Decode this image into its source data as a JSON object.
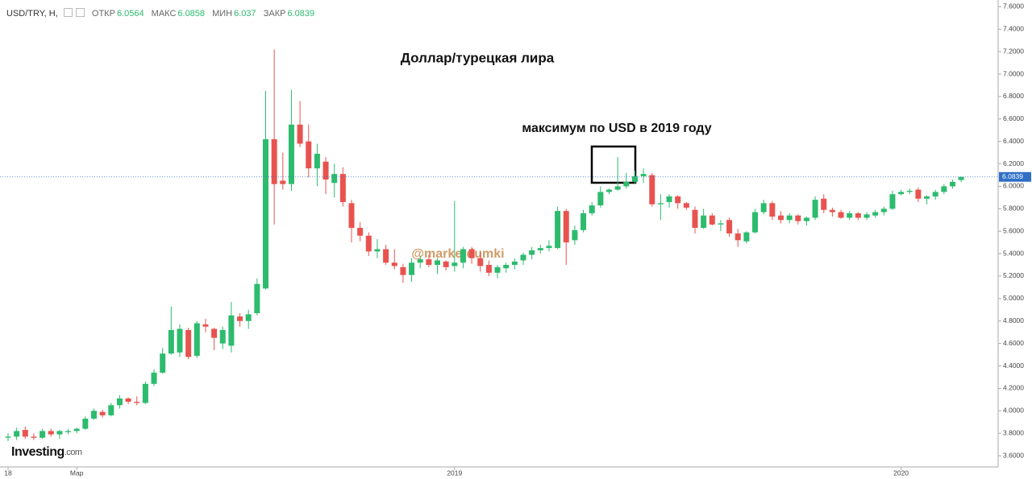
{
  "chart_data": {
    "type": "candlestick",
    "symbol": "USD/TRY, Н,",
    "ohlc_labels": [
      "ОТКР",
      "МАКС",
      "МИН",
      "ЗАКР"
    ],
    "title": "Доллар/турецкая лира",
    "annotation": "максимум по USD в 2019 году",
    "watermark": "@marketdumki",
    "logo": [
      "Investing",
      ".com"
    ],
    "up_color": "#2dbb6e",
    "down_color": "#e8534f",
    "last_price_color": "#2f6fc6",
    "categories": [
      "18",
      null,
      null,
      null,
      null,
      null,
      null,
      null,
      "Мар",
      null,
      null,
      null,
      null,
      null,
      null,
      null,
      null,
      null,
      null,
      null,
      null,
      null,
      null,
      null,
      null,
      null,
      null,
      null,
      null,
      null,
      null,
      null,
      null,
      null,
      null,
      null,
      null,
      null,
      null,
      null,
      null,
      null,
      null,
      null,
      null,
      null,
      null,
      null,
      null,
      null,
      null,
      null,
      "2019",
      null,
      null,
      null,
      null,
      null,
      null,
      null,
      null,
      null,
      null,
      null,
      null,
      null,
      null,
      null,
      null,
      null,
      null,
      null,
      null,
      null,
      null,
      null,
      null,
      null,
      null,
      null,
      null,
      null,
      null,
      null,
      null,
      null,
      null,
      null,
      null,
      null,
      null,
      null,
      null,
      null,
      null,
      null,
      null,
      null,
      null,
      null,
      null,
      null,
      null,
      null,
      "2020",
      null,
      null,
      null,
      null,
      null,
      null,
      null
    ],
    "open": [
      3.76,
      3.77,
      3.83,
      3.77,
      3.76,
      3.82,
      3.79,
      3.81,
      3.82,
      3.84,
      3.93,
      3.99,
      3.96,
      4.05,
      4.11,
      4.08,
      4.07,
      4.24,
      4.34,
      4.51,
      4.52,
      4.72,
      4.49,
      4.77,
      4.73,
      4.6,
      4.58,
      4.84,
      4.8,
      4.87,
      5.09,
      6.42,
      6.05,
      6.02,
      6.55,
      6.4,
      6.16,
      6.22,
      6.03,
      6.11,
      5.85,
      5.63,
      5.56,
      5.42,
      5.44,
      5.32,
      5.28,
      5.21,
      5.32,
      5.35,
      5.3,
      5.33,
      5.29,
      5.32,
      5.44,
      5.36,
      5.3,
      5.23,
      5.27,
      5.3,
      5.34,
      5.39,
      5.43,
      5.45,
      5.45,
      5.78,
      5.52,
      5.61,
      5.76,
      5.83,
      5.95,
      5.97,
      6.0,
      6.04,
      6.09,
      6.1,
      5.84,
      5.86,
      5.91,
      5.85,
      5.79,
      5.63,
      5.74,
      5.66,
      5.7,
      5.58,
      5.51,
      5.59,
      5.77,
      5.85,
      5.74,
      5.7,
      5.74,
      5.69,
      5.72,
      5.89,
      5.79,
      5.77,
      5.72,
      5.76,
      5.72,
      5.74,
      5.77,
      5.8,
      5.93,
      5.95,
      5.97,
      5.89,
      5.91,
      5.95,
      6.0,
      6.0564
    ],
    "high": [
      3.8,
      3.85,
      3.86,
      3.8,
      3.84,
      3.84,
      3.83,
      3.84,
      3.85,
      3.95,
      4.02,
      4.01,
      4.07,
      4.14,
      4.12,
      4.13,
      4.26,
      4.37,
      4.56,
      4.93,
      4.77,
      4.74,
      4.8,
      4.82,
      4.74,
      4.75,
      4.97,
      4.87,
      4.9,
      5.18,
      6.85,
      7.22,
      6.3,
      6.86,
      6.76,
      6.55,
      6.38,
      6.26,
      6.2,
      6.17,
      5.88,
      5.68,
      5.59,
      5.53,
      5.48,
      5.44,
      5.31,
      5.36,
      5.38,
      5.39,
      5.36,
      5.34,
      5.87,
      5.46,
      5.46,
      5.41,
      5.34,
      5.3,
      5.32,
      5.36,
      5.41,
      5.46,
      5.48,
      5.52,
      5.82,
      5.8,
      5.65,
      5.79,
      5.86,
      6.0,
      5.98,
      6.26,
      6.12,
      6.14,
      6.16,
      6.12,
      5.93,
      5.93,
      5.92,
      5.86,
      5.82,
      5.8,
      5.76,
      5.7,
      5.72,
      5.62,
      5.6,
      5.8,
      5.88,
      5.87,
      5.78,
      5.76,
      5.75,
      5.73,
      5.91,
      5.93,
      5.81,
      5.79,
      5.78,
      5.77,
      5.77,
      5.79,
      5.82,
      5.96,
      5.97,
      5.98,
      5.99,
      5.92,
      5.97,
      6.02,
      6.06,
      6.0858
    ],
    "low": [
      3.73,
      3.74,
      3.75,
      3.74,
      3.75,
      3.77,
      3.75,
      3.79,
      3.8,
      3.83,
      3.92,
      3.94,
      3.95,
      4.02,
      4.06,
      4.05,
      4.06,
      4.22,
      4.33,
      4.5,
      4.48,
      4.46,
      4.47,
      4.7,
      4.54,
      4.55,
      4.52,
      4.75,
      4.73,
      4.85,
      5.08,
      5.66,
      5.97,
      5.96,
      6.35,
      6.08,
      6.0,
      5.93,
      5.9,
      5.82,
      5.5,
      5.51,
      5.38,
      5.36,
      5.3,
      5.26,
      5.14,
      5.15,
      5.27,
      5.28,
      5.22,
      5.25,
      5.24,
      5.27,
      5.31,
      5.24,
      5.2,
      5.18,
      5.23,
      5.26,
      5.3,
      5.35,
      5.4,
      5.42,
      5.44,
      5.3,
      5.48,
      5.59,
      5.74,
      5.81,
      5.93,
      5.96,
      5.98,
      6.02,
      6.03,
      5.82,
      5.7,
      5.81,
      5.8,
      5.79,
      5.58,
      5.62,
      5.65,
      5.6,
      5.55,
      5.46,
      5.49,
      5.58,
      5.75,
      5.7,
      5.67,
      5.67,
      5.66,
      5.65,
      5.7,
      5.76,
      5.73,
      5.71,
      5.7,
      5.7,
      5.7,
      5.72,
      5.74,
      5.79,
      5.92,
      5.93,
      5.86,
      5.84,
      5.88,
      5.93,
      5.98,
      6.037
    ],
    "close": [
      3.77,
      3.82,
      3.77,
      3.76,
      3.82,
      3.79,
      3.82,
      3.82,
      3.84,
      3.93,
      4.0,
      3.96,
      4.05,
      4.11,
      4.08,
      4.07,
      4.24,
      4.34,
      4.51,
      4.72,
      4.73,
      4.48,
      4.78,
      4.75,
      4.65,
      4.72,
      4.85,
      4.8,
      4.86,
      5.13,
      6.42,
      6.02,
      6.02,
      6.55,
      6.38,
      6.16,
      6.29,
      6.06,
      6.11,
      5.86,
      5.63,
      5.56,
      5.42,
      5.44,
      5.32,
      5.29,
      5.21,
      5.32,
      5.35,
      5.3,
      5.34,
      5.28,
      5.32,
      5.44,
      5.36,
      5.29,
      5.23,
      5.28,
      5.3,
      5.33,
      5.39,
      5.43,
      5.45,
      5.47,
      5.78,
      5.5,
      5.61,
      5.76,
      5.83,
      5.95,
      5.97,
      6.0,
      6.04,
      6.09,
      6.11,
      5.84,
      5.85,
      5.91,
      5.85,
      5.81,
      5.63,
      5.74,
      5.66,
      5.67,
      5.58,
      5.52,
      5.59,
      5.77,
      5.85,
      5.73,
      5.7,
      5.74,
      5.69,
      5.72,
      5.88,
      5.79,
      5.77,
      5.72,
      5.76,
      5.72,
      5.75,
      5.77,
      5.8,
      5.93,
      5.95,
      5.96,
      5.89,
      5.91,
      5.95,
      6.0,
      6.04,
      6.0839
    ],
    "ylim": [
      3.5,
      7.66
    ],
    "yticks": [
      {
        "value": 3.6,
        "label": "3.6000"
      },
      {
        "value": 3.8,
        "label": "3.8000"
      },
      {
        "value": 4.0,
        "label": "4.0000"
      },
      {
        "value": 4.2,
        "label": "4.2000"
      },
      {
        "value": 4.4,
        "label": "4.4000"
      },
      {
        "value": 4.6,
        "label": "4.6000"
      },
      {
        "value": 4.8,
        "label": "4.8000"
      },
      {
        "value": 5.0,
        "label": "5.0000"
      },
      {
        "value": 5.2,
        "label": "5.2000"
      },
      {
        "value": 5.4,
        "label": "5.4000"
      },
      {
        "value": 5.6,
        "label": "5.6000"
      },
      {
        "value": 5.8,
        "label": "5.8000"
      },
      {
        "value": 6.0,
        "label": "6.0000"
      },
      {
        "value": 6.2,
        "label": "6.2000"
      },
      {
        "value": 6.4,
        "label": "6.4000"
      },
      {
        "value": 6.6,
        "label": "6.6000"
      },
      {
        "value": 6.8,
        "label": "6.8000"
      },
      {
        "value": 7.0,
        "label": "7.0000"
      },
      {
        "value": 7.2,
        "label": "7.2000"
      },
      {
        "value": 7.4,
        "label": "7.4000"
      },
      {
        "value": 7.6,
        "label": "7.6000"
      }
    ]
  }
}
